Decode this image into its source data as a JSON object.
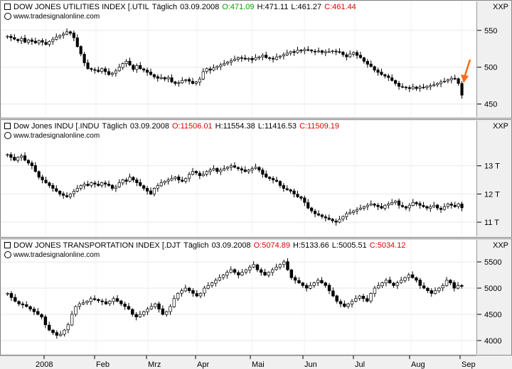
{
  "chart_data": [
    {
      "type": "candlestick",
      "title": "DOW JONES UTILITIES INDEX [.UTIL",
      "interval": "Täglich",
      "date": "03.09.2008",
      "open_label": "O:471.09",
      "high_label": "H:471.11",
      "low_label": "L:461.27",
      "close_label": "C:461.44",
      "open_color": "#00a000",
      "close_color": "#e00000",
      "source": "www.tradesignalonline.com",
      "unit": "XXP",
      "ylim": [
        440,
        570
      ],
      "yticks": [
        {
          "v": 550,
          "t": "550"
        },
        {
          "v": 500,
          "t": "500"
        },
        {
          "v": 450,
          "t": "450"
        }
      ],
      "annotation": "arrow-down-orange",
      "closes": [
        542,
        540,
        538,
        536,
        539,
        534,
        537,
        535,
        533,
        536,
        534,
        531,
        535,
        538,
        541,
        543,
        545,
        548,
        546,
        540,
        528,
        518,
        506,
        498,
        497,
        496,
        494,
        498,
        494,
        490,
        492,
        495,
        500,
        505,
        508,
        503,
        497,
        502,
        498,
        496,
        493,
        490,
        487,
        485,
        486,
        484,
        486,
        480,
        478,
        479,
        482,
        483,
        481,
        478,
        480,
        484,
        494,
        498,
        496,
        499,
        501,
        503,
        505,
        507,
        509,
        511,
        513,
        512,
        511,
        512,
        510,
        513,
        514,
        516,
        513,
        512,
        511,
        514,
        515,
        517,
        519,
        521,
        520,
        523,
        522,
        524,
        523,
        522,
        521,
        522,
        520,
        521,
        521,
        522,
        521,
        520,
        517,
        514,
        518,
        520,
        516,
        513,
        508,
        504,
        501,
        496,
        493,
        490,
        488,
        486,
        482,
        478,
        474,
        473,
        472,
        471,
        473,
        471,
        473,
        472,
        474,
        475,
        476,
        478,
        480,
        481,
        483,
        485,
        484,
        478,
        462
      ]
    },
    {
      "type": "candlestick",
      "title": "Dow Jones INDU [.INDU",
      "interval": "Täglich",
      "date": "03.09.2008",
      "open_label": "O:11506.01",
      "high_label": "H:11554.38",
      "low_label": "L:11416.53",
      "close_label": "C:11509.19",
      "open_color": "#e00000",
      "close_color": "#e00000",
      "source": "www.tradesignalonline.com",
      "unit": "XXP",
      "ylim": [
        10700,
        14100
      ],
      "yticks": [
        {
          "v": 13000,
          "t": "13 T"
        },
        {
          "v": 12000,
          "t": "12 T"
        },
        {
          "v": 11000,
          "t": "11 T"
        }
      ],
      "closes": [
        13400,
        13300,
        13200,
        13300,
        13350,
        13200,
        13100,
        13000,
        12800,
        12600,
        12500,
        12400,
        12300,
        12200,
        12100,
        12000,
        11950,
        11900,
        12000,
        12100,
        12200,
        12300,
        12350,
        12300,
        12400,
        12350,
        12300,
        12400,
        12350,
        12300,
        12200,
        12250,
        12400,
        12500,
        12450,
        12600,
        12500,
        12400,
        12300,
        12200,
        12100,
        12000,
        12200,
        12300,
        12400,
        12450,
        12500,
        12550,
        12600,
        12500,
        12450,
        12550,
        12700,
        12800,
        12750,
        12650,
        12700,
        12800,
        12850,
        12900,
        12800,
        12850,
        12900,
        12950,
        13000,
        12950,
        12900,
        12850,
        12800,
        12850,
        12900,
        12950,
        12850,
        12700,
        12600,
        12550,
        12500,
        12450,
        12300,
        12200,
        12150,
        12100,
        12000,
        11900,
        11850,
        11700,
        11500,
        11400,
        11300,
        11250,
        11200,
        11150,
        11100,
        11050,
        11000,
        11100,
        11200,
        11300,
        11350,
        11400,
        11450,
        11500,
        11550,
        11600,
        11650,
        11600,
        11550,
        11500,
        11600,
        11650,
        11700,
        11750,
        11600,
        11550,
        11500,
        11600,
        11700,
        11650,
        11600,
        11550,
        11500,
        11550,
        11600,
        11500,
        11450,
        11550,
        11650,
        11600,
        11550,
        11650,
        11509
      ]
    },
    {
      "type": "candlestick",
      "title": "DOW JONES TRANSPORTATION INDEX [.DJT",
      "interval": "Täglich",
      "date": "03.09.2008",
      "open_label": "O:5074.89",
      "high_label": "H:5133.66",
      "low_label": "L:5005.51",
      "close_label": "C:5034.12",
      "open_color": "#e00000",
      "close_color": "#e00000",
      "source": "www.tradesignalonline.com",
      "unit": "XXP",
      "ylim": [
        3850,
        5650
      ],
      "yticks": [
        {
          "v": 5500,
          "t": "5500"
        },
        {
          "v": 5000,
          "t": "5000"
        },
        {
          "v": 4500,
          "t": "4500"
        },
        {
          "v": 4000,
          "t": "4000"
        }
      ],
      "closes": [
        4900,
        4820,
        4750,
        4700,
        4680,
        4650,
        4600,
        4550,
        4500,
        4450,
        4300,
        4200,
        4150,
        4100,
        4120,
        4200,
        4300,
        4500,
        4650,
        4700,
        4720,
        4750,
        4800,
        4780,
        4760,
        4740,
        4700,
        4750,
        4800,
        4750,
        4700,
        4650,
        4600,
        4500,
        4450,
        4500,
        4550,
        4600,
        4650,
        4700,
        4600,
        4500,
        4550,
        4650,
        4800,
        4900,
        4950,
        5000,
        4950,
        4900,
        4850,
        4900,
        5000,
        5050,
        5100,
        5150,
        5200,
        5250,
        5300,
        5350,
        5300,
        5250,
        5300,
        5350,
        5400,
        5450,
        5350,
        5300,
        5250,
        5300,
        5350,
        5400,
        5450,
        5500,
        5350,
        5200,
        5150,
        5100,
        5050,
        5000,
        5050,
        5100,
        5150,
        5100,
        5050,
        4950,
        4850,
        4750,
        4700,
        4650,
        4700,
        4750,
        4800,
        4850,
        4800,
        4750,
        4900,
        5000,
        5050,
        5100,
        5150,
        5100,
        5050,
        5100,
        5150,
        5200,
        5250,
        5200,
        5150,
        5050,
        5000,
        4950,
        4900,
        4950,
        5000,
        5050,
        5150,
        5100,
        5000,
        5050,
        5034
      ]
    }
  ],
  "x_axis": {
    "labels": [
      "2008",
      "Feb",
      "Mrz",
      "Apr",
      "Mai",
      "Jun",
      "Jul",
      "Aug",
      "Sep"
    ]
  }
}
